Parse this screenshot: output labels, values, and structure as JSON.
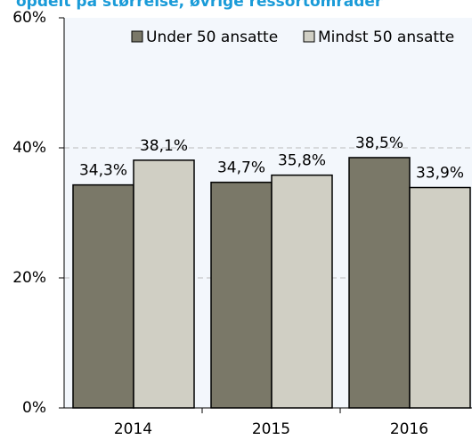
{
  "chart_data": {
    "type": "bar",
    "title": "opdelt på størrelse, øvrige ressortområder",
    "categories": [
      "2014",
      "2015",
      "2016"
    ],
    "series": [
      {
        "name": "Under 50 ansatte",
        "color": "#7a7868",
        "values": [
          34.3,
          34.7,
          38.5
        ],
        "value_labels": [
          "34,3%",
          "34,7%",
          "38,5%"
        ]
      },
      {
        "name": "Mindst 50 ansatte",
        "color": "#d0cfc4",
        "values": [
          38.1,
          35.8,
          33.9
        ],
        "value_labels": [
          "38,1%",
          "35,8%",
          "33,9%"
        ]
      }
    ],
    "ylim": [
      0,
      60
    ],
    "yticks": [
      {
        "value": 0,
        "label": "0%"
      },
      {
        "value": 20,
        "label": "20%"
      },
      {
        "value": 40,
        "label": "40%"
      },
      {
        "value": 60,
        "label": "60%"
      }
    ],
    "grid": true,
    "legend": "top-right"
  }
}
